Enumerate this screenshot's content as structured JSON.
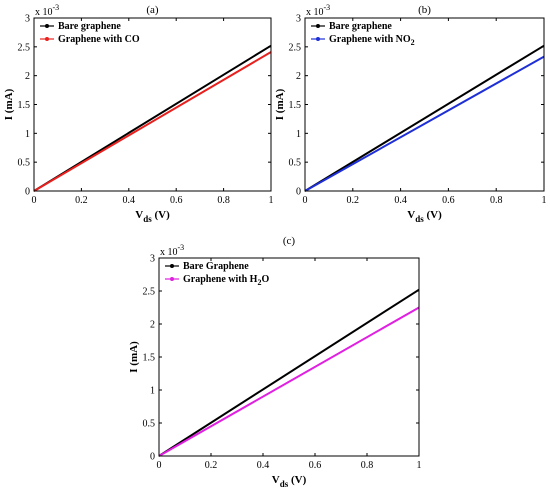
{
  "chart_data": [
    {
      "type": "line",
      "panel_label": "(a)",
      "x": [
        0,
        1
      ],
      "series": [
        {
          "name": "Bare graphene",
          "values": [
            0,
            2.52
          ],
          "color": "#000000"
        },
        {
          "name": "Graphene with CO",
          "values": [
            0,
            2.41
          ],
          "color": "#e8201e"
        }
      ],
      "xlim": [
        0,
        1
      ],
      "ylim": [
        0,
        3
      ],
      "x_ticks": [
        "0",
        "0.2",
        "0.4",
        "0.6",
        "0.8",
        "1"
      ],
      "y_ticks": [
        "0",
        "0.5",
        "1",
        "1.5",
        "2",
        "2.5",
        "3"
      ],
      "y_multiplier": "x 10",
      "y_exponent": "-3",
      "ylabel": "I (mA)",
      "xlabel_main": "V",
      "xlabel_sub": "ds",
      "xlabel_unit": "(V)",
      "legend_placement": "top-left",
      "grid": false
    },
    {
      "type": "line",
      "panel_label": "(b)",
      "x": [
        0,
        1
      ],
      "series": [
        {
          "name": "Bare graphene",
          "values": [
            0,
            2.52
          ],
          "color": "#000000"
        },
        {
          "name": "Graphene with NO",
          "name_sub": "2",
          "values": [
            0,
            2.33
          ],
          "color": "#1f2fd6"
        }
      ],
      "xlim": [
        0,
        1
      ],
      "ylim": [
        0,
        3
      ],
      "x_ticks": [
        "0",
        "0.2",
        "0.4",
        "0.6",
        "0.8",
        "1"
      ],
      "y_ticks": [
        "0",
        "0.5",
        "1",
        "1.5",
        "2",
        "2.5",
        "3"
      ],
      "y_multiplier": "x 10",
      "y_exponent": "-3",
      "ylabel": "I (mA)",
      "xlabel_main": "V",
      "xlabel_sub": "ds",
      "xlabel_unit": "(V)",
      "legend_placement": "top-left",
      "grid": false
    },
    {
      "type": "line",
      "panel_label": "(c)",
      "x": [
        0,
        1
      ],
      "series": [
        {
          "name": "Bare Graphene",
          "values": [
            0,
            2.52
          ],
          "color": "#000000"
        },
        {
          "name": "Graphene with H",
          "name_sub": "2",
          "name_suffix": "O",
          "values": [
            0,
            2.25
          ],
          "color": "#e020e0"
        }
      ],
      "xlim": [
        0,
        1
      ],
      "ylim": [
        0,
        3
      ],
      "x_ticks": [
        "0",
        "0.2",
        "0.4",
        "0.6",
        "0.8",
        "1"
      ],
      "y_ticks": [
        "0",
        "0.5",
        "1",
        "1.5",
        "2",
        "2.5",
        "3"
      ],
      "y_multiplier": "x 10",
      "y_exponent": "-3",
      "ylabel": "I (mA)",
      "xlabel_main": "V",
      "xlabel_sub": "ds",
      "xlabel_unit": "(V)",
      "legend_placement": "top-left",
      "grid": false
    }
  ]
}
